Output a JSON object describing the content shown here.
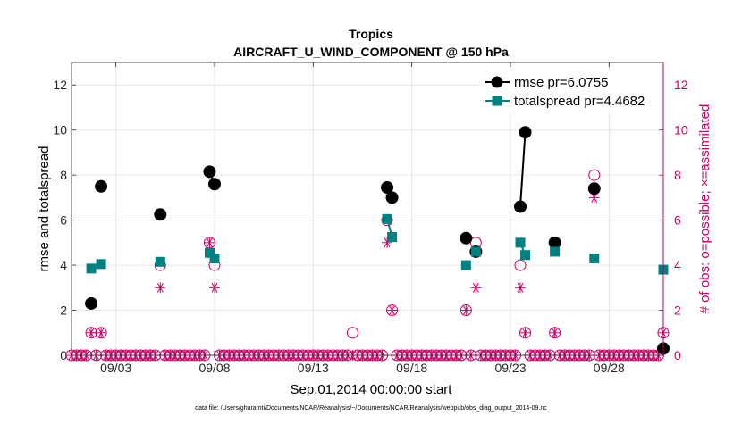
{
  "chart_data": {
    "type": "line",
    "title": "Tropics",
    "subtitle": "AIRCRAFT_U_WIND_COMPONENT @ 150 hPa",
    "xlabel": "Sep.01,2014 00:00:00 start",
    "ylabel": "rmse and totalspread",
    "y2label": "# of obs: o=possible; ×=assimilated",
    "footnote": "data file: /Users/gharamti/Documents/NCAR/Reanalysis/~/Documents/NCAR/Reanalysis/webpub/obs_diag_output_2014-09.nc",
    "xlim": [
      0.75,
      30.75
    ],
    "ylim": [
      0,
      13
    ],
    "y2lim": [
      0,
      13
    ],
    "x_ticks": [
      {
        "value": 3,
        "label": "09/03"
      },
      {
        "value": 8,
        "label": "09/08"
      },
      {
        "value": 13,
        "label": "09/13"
      },
      {
        "value": 18,
        "label": "09/18"
      },
      {
        "value": 23,
        "label": "09/23"
      },
      {
        "value": 28,
        "label": "09/28"
      }
    ],
    "y_ticks": [
      0,
      2,
      4,
      6,
      8,
      10,
      12
    ],
    "y2_ticks": [
      0,
      2,
      4,
      6,
      8,
      10,
      12
    ],
    "grid": true,
    "legend": "top-right",
    "colors": {
      "rmse": "#000000",
      "spread": "#008080",
      "obs": "#cc0066",
      "grid": "#e6e6e6"
    },
    "series": [
      {
        "name": "rmse pr=6.0755",
        "marker": "circle",
        "color": "#000000",
        "points": [
          [
            1.75,
            2.3
          ],
          [
            2.25,
            7.5
          ],
          [
            5.25,
            6.25
          ],
          [
            7.75,
            8.15
          ],
          [
            8.0,
            7.6
          ],
          [
            16.75,
            7.45
          ],
          [
            17.0,
            7.0
          ],
          [
            20.75,
            5.2
          ],
          [
            21.25,
            4.6
          ],
          [
            23.5,
            6.6
          ],
          [
            23.75,
            9.9
          ],
          [
            25.25,
            5.0
          ],
          [
            27.25,
            7.4
          ],
          [
            30.75,
            0.3
          ]
        ]
      },
      {
        "name": "totalspread pr=4.4682",
        "marker": "square",
        "color": "#008080",
        "points": [
          [
            1.75,
            3.85
          ],
          [
            2.25,
            4.05
          ],
          [
            5.25,
            4.15
          ],
          [
            7.75,
            4.55
          ],
          [
            8.0,
            4.3
          ],
          [
            16.75,
            6.05
          ],
          [
            17.0,
            5.25
          ],
          [
            20.75,
            4.0
          ],
          [
            21.25,
            4.6
          ],
          [
            23.5,
            5.0
          ],
          [
            23.75,
            4.45
          ],
          [
            25.25,
            4.6
          ],
          [
            27.25,
            4.3
          ],
          [
            30.75,
            3.8
          ]
        ]
      }
    ],
    "obs_possible": [
      [
        1.75,
        1
      ],
      [
        2.25,
        1
      ],
      [
        5.25,
        4
      ],
      [
        7.75,
        5
      ],
      [
        8.0,
        4
      ],
      [
        15.0,
        1
      ],
      [
        16.75,
        6
      ],
      [
        17.0,
        2
      ],
      [
        20.75,
        2
      ],
      [
        21.25,
        5
      ],
      [
        23.5,
        4
      ],
      [
        23.75,
        1
      ],
      [
        25.25,
        1
      ],
      [
        27.25,
        8
      ],
      [
        30.75,
        1
      ]
    ],
    "obs_assimilated": [
      [
        1.75,
        1
      ],
      [
        2.25,
        1
      ],
      [
        5.25,
        3
      ],
      [
        7.75,
        5
      ],
      [
        8.0,
        3
      ],
      [
        16.75,
        5
      ],
      [
        17.0,
        2
      ],
      [
        20.75,
        2
      ],
      [
        21.25,
        3
      ],
      [
        23.5,
        3
      ],
      [
        23.75,
        1
      ],
      [
        25.25,
        1
      ],
      [
        27.25,
        7
      ],
      [
        30.75,
        1
      ]
    ],
    "obs_zero_start": 0.75,
    "obs_zero_end": 30.75,
    "obs_zero_step": 0.25
  }
}
